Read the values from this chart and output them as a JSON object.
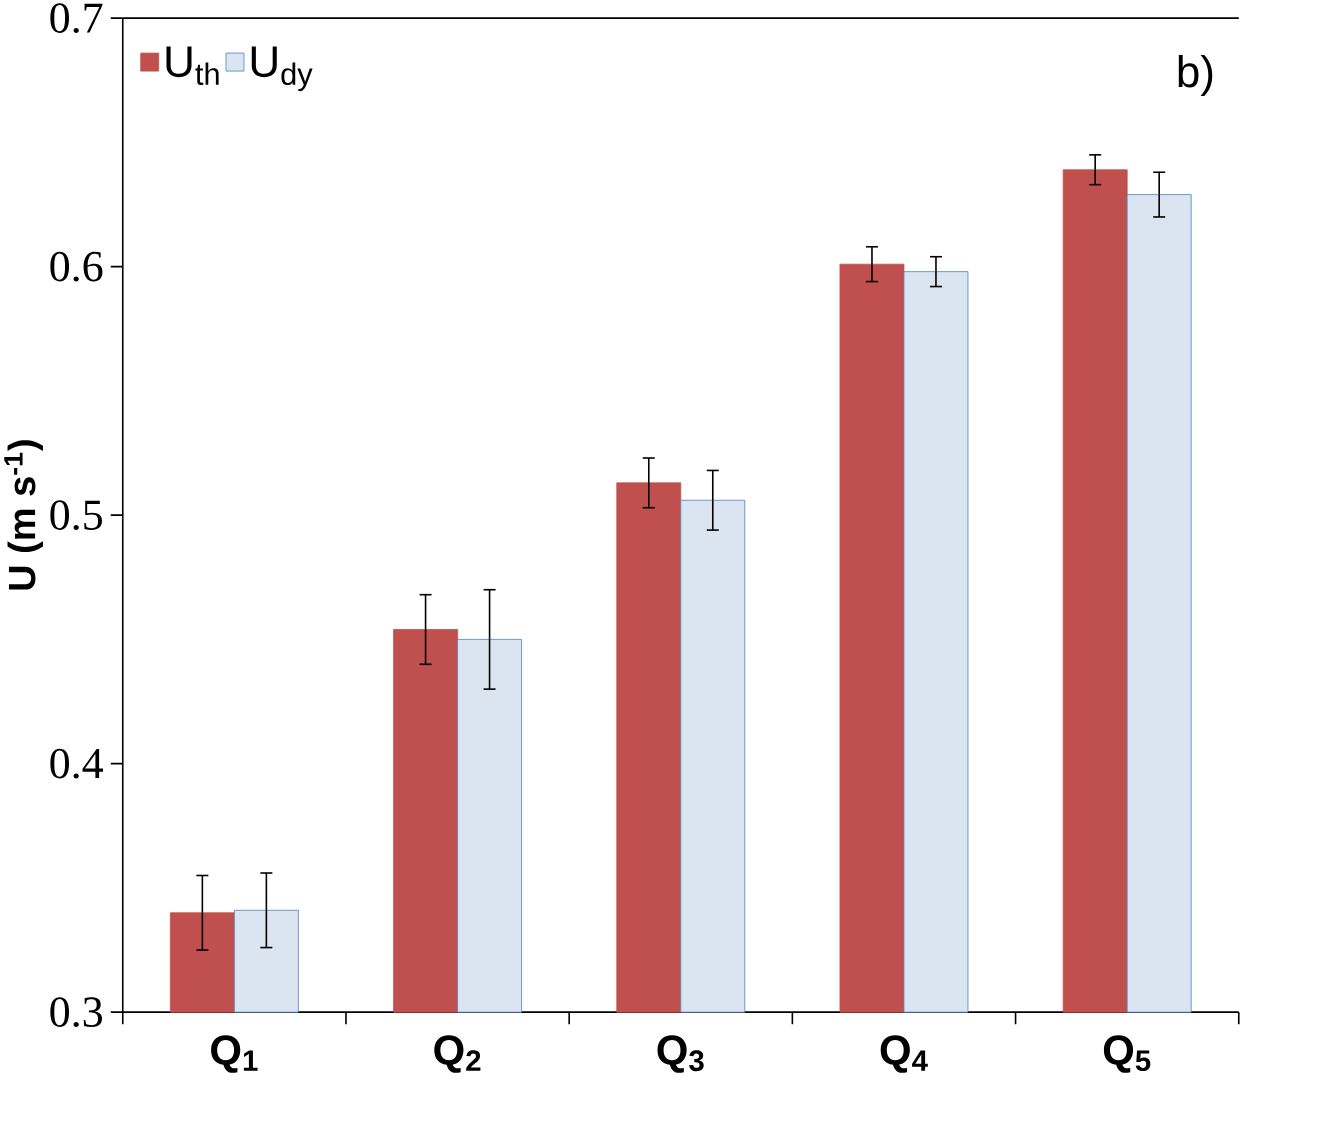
{
  "chart_data": {
    "type": "bar",
    "ylabel": "U (m s$^{-1}$)",
    "categories": [
      "Q$_{1}$",
      "Q$_{2}$",
      "Q$_{3}$",
      "Q$_{4}$",
      "Q$_{5}$"
    ],
    "series": [
      {
        "name": "U$_{th}$",
        "color": "#c0504d",
        "values": [
          0.34,
          0.454,
          0.513,
          0.601,
          0.639
        ],
        "errors": [
          0.015,
          0.014,
          0.01,
          0.007,
          0.006
        ]
      },
      {
        "name": "U$_{dy}$",
        "color": "#dbe5f1",
        "values": [
          0.341,
          0.45,
          0.506,
          0.598,
          0.629
        ],
        "errors": [
          0.015,
          0.02,
          0.012,
          0.006,
          0.009
        ]
      }
    ],
    "ylim": [
      0.3,
      0.7
    ],
    "yticks": [
      0.3,
      0.4,
      0.5,
      0.6,
      0.7
    ],
    "legend": "top left",
    "annotations": [
      "b)"
    ]
  }
}
